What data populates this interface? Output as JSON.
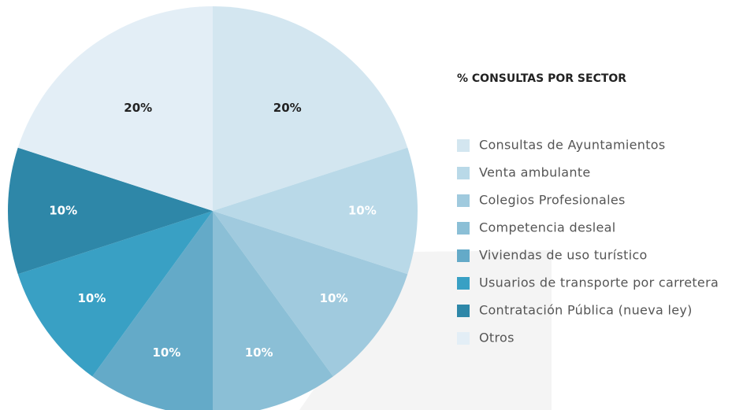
{
  "chart_data": {
    "type": "pie",
    "title": "% CONSULTAS POR SECTOR",
    "categories": [
      "Consultas de Ayuntamientos",
      "Venta ambulante",
      "Colegios Profesionales",
      "Competencia desleal",
      "Viviendas de uso turístico",
      "Usuarios de transporte por carretera",
      "Contratación Pública (nueva ley)",
      "Otros"
    ],
    "values": [
      20,
      10,
      10,
      10,
      10,
      10,
      10,
      20
    ],
    "value_labels": [
      "20%",
      "10%",
      "10%",
      "10%",
      "10%",
      "10%",
      "10%",
      "20%"
    ],
    "colors": [
      "#d3e6f0",
      "#b9d9e8",
      "#a0cade",
      "#8bbfd6",
      "#64aac8",
      "#39a0c4",
      "#2e87a8",
      "#e3eef6"
    ]
  }
}
